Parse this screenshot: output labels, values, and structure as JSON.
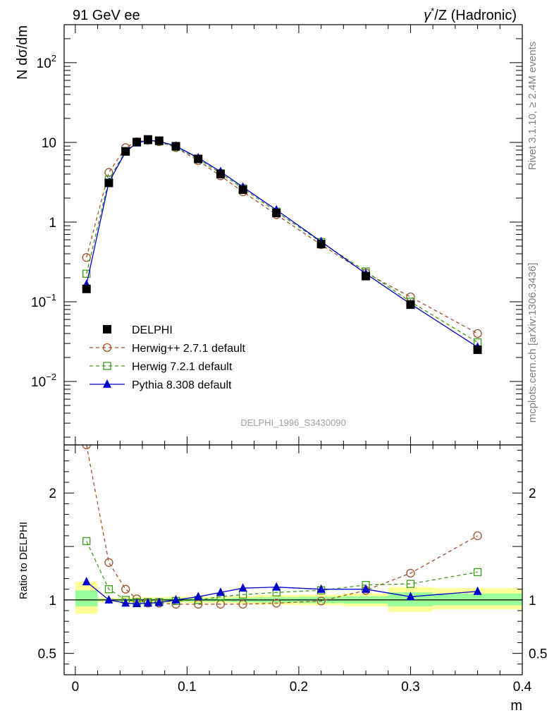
{
  "header": {
    "left": "91 GeV ee",
    "right_sym": "γ",
    "right_sup": "*",
    "right_rest": "/Z (Hadronic)"
  },
  "side_labels": {
    "rivet": "Rivet 3.1.10, ≥ 2.4M events",
    "mcplots": "mcplots.cern.ch [arXiv:1306.3436]"
  },
  "watermark": "DELPHI_1996_S3430090",
  "colors": {
    "data": "#000000",
    "herwigpp": "#a0522d",
    "herwig7": "#3a9a1a",
    "pythia": "#0000cc",
    "band_outer": "#ffff99",
    "band_inner": "#99ff99"
  },
  "chart_data": [
    {
      "type": "line",
      "name": "main",
      "ylabel": "N dσ/dm",
      "yscale": "log",
      "xlim": [
        -0.01,
        0.4
      ],
      "ylim": [
        0.0016,
        300
      ],
      "yticks": [
        {
          "value": 0.01,
          "base": "10",
          "exp": "−2"
        },
        {
          "value": 0.1,
          "base": "10",
          "exp": "−1"
        },
        {
          "value": 1,
          "base": "1",
          "exp": ""
        },
        {
          "value": 10,
          "base": "10",
          "exp": ""
        },
        {
          "value": 100,
          "base": "10",
          "exp": "2"
        }
      ],
      "legend_position": "left, lower",
      "series": [
        {
          "name": "DELPHI",
          "key": "data",
          "marker": "square-filled",
          "x": [
            0.01,
            0.03,
            0.045,
            0.055,
            0.065,
            0.075,
            0.09,
            0.11,
            0.13,
            0.15,
            0.18,
            0.22,
            0.26,
            0.3,
            0.36
          ],
          "y": [
            0.145,
            3.1,
            7.7,
            10.1,
            10.9,
            10.5,
            8.95,
            6.2,
            4.0,
            2.55,
            1.3,
            0.53,
            0.21,
            0.092,
            0.025
          ]
        },
        {
          "name": "Herwig++ 2.7.1 default",
          "key": "herwigpp",
          "marker": "circle-open",
          "dash": "5,4",
          "x": [
            0.01,
            0.03,
            0.045,
            0.055,
            0.065,
            0.075,
            0.09,
            0.11,
            0.13,
            0.15,
            0.18,
            0.22,
            0.26,
            0.3,
            0.36
          ],
          "y": [
            0.36,
            4.2,
            8.6,
            10.2,
            10.6,
            10.2,
            8.6,
            5.9,
            3.8,
            2.4,
            1.24,
            0.52,
            0.23,
            0.115,
            0.04
          ]
        },
        {
          "name": "Herwig 7.2.1 default",
          "key": "herwig7",
          "marker": "square-open",
          "dash": "5,4",
          "x": [
            0.01,
            0.03,
            0.045,
            0.055,
            0.065,
            0.075,
            0.09,
            0.11,
            0.13,
            0.15,
            0.18,
            0.22,
            0.26,
            0.3,
            0.36
          ],
          "y": [
            0.225,
            3.4,
            7.8,
            10.0,
            10.6,
            10.3,
            8.8,
            6.2,
            4.1,
            2.65,
            1.35,
            0.56,
            0.24,
            0.1,
            0.031
          ]
        },
        {
          "name": "Pythia 8.308 default",
          "key": "pythia",
          "marker": "triangle-filled",
          "dash": "",
          "x": [
            0.01,
            0.03,
            0.045,
            0.055,
            0.065,
            0.075,
            0.09,
            0.11,
            0.13,
            0.15,
            0.18,
            0.22,
            0.26,
            0.3,
            0.36
          ],
          "y": [
            0.165,
            3.15,
            7.6,
            9.85,
            10.6,
            10.35,
            9.0,
            6.4,
            4.3,
            2.75,
            1.42,
            0.57,
            0.225,
            0.094,
            0.027
          ]
        }
      ]
    },
    {
      "type": "line",
      "name": "ratio",
      "ylabel": "Ratio to DELPHI",
      "xlabel": "m",
      "xlim": [
        -0.01,
        0.4
      ],
      "ylim": [
        0.3,
        2.45
      ],
      "yticks": [
        0.5,
        1,
        2
      ],
      "xticks": [
        0,
        0.1,
        0.2,
        0.3,
        0.4
      ],
      "xtick_labels": [
        "0",
        "0.1",
        "0.2",
        "0.3",
        "0.4"
      ],
      "ytick_labels": [
        "0.5",
        "1",
        "2"
      ],
      "bands": [
        {
          "x0": 0.0,
          "x1": 0.02,
          "outer": [
            0.87,
            1.17
          ],
          "inner": [
            0.94,
            1.09
          ]
        },
        {
          "x0": 0.02,
          "x1": 0.04,
          "outer": [
            0.98,
            1.02
          ],
          "inner": [
            0.99,
            1.01
          ]
        },
        {
          "x0": 0.04,
          "x1": 0.05,
          "outer": [
            0.975,
            1.025
          ],
          "inner": [
            0.988,
            1.012
          ]
        },
        {
          "x0": 0.05,
          "x1": 0.06,
          "outer": [
            0.975,
            1.025
          ],
          "inner": [
            0.988,
            1.012
          ]
        },
        {
          "x0": 0.06,
          "x1": 0.07,
          "outer": [
            0.975,
            1.025
          ],
          "inner": [
            0.988,
            1.012
          ]
        },
        {
          "x0": 0.07,
          "x1": 0.08,
          "outer": [
            0.975,
            1.025
          ],
          "inner": [
            0.988,
            1.012
          ]
        },
        {
          "x0": 0.08,
          "x1": 0.1,
          "outer": [
            0.97,
            1.03
          ],
          "inner": [
            0.985,
            1.015
          ]
        },
        {
          "x0": 0.1,
          "x1": 0.12,
          "outer": [
            0.97,
            1.03
          ],
          "inner": [
            0.985,
            1.015
          ]
        },
        {
          "x0": 0.12,
          "x1": 0.14,
          "outer": [
            0.97,
            1.03
          ],
          "inner": [
            0.985,
            1.015
          ]
        },
        {
          "x0": 0.14,
          "x1": 0.16,
          "outer": [
            0.965,
            1.035
          ],
          "inner": [
            0.98,
            1.02
          ]
        },
        {
          "x0": 0.16,
          "x1": 0.2,
          "outer": [
            0.955,
            1.045
          ],
          "inner": [
            0.975,
            1.025
          ]
        },
        {
          "x0": 0.2,
          "x1": 0.24,
          "outer": [
            0.95,
            1.05
          ],
          "inner": [
            0.97,
            1.03
          ]
        },
        {
          "x0": 0.24,
          "x1": 0.28,
          "outer": [
            0.94,
            1.06
          ],
          "inner": [
            0.965,
            1.035
          ]
        },
        {
          "x0": 0.28,
          "x1": 0.32,
          "outer": [
            0.89,
            1.12
          ],
          "inner": [
            0.94,
            1.07
          ]
        },
        {
          "x0": 0.32,
          "x1": 0.4,
          "outer": [
            0.91,
            1.11
          ],
          "inner": [
            0.95,
            1.06
          ]
        }
      ],
      "series": [
        {
          "name": "Herwig++ 2.7.1 default",
          "key": "herwigpp",
          "marker": "circle-open",
          "dash": "5,4",
          "x": [
            0.01,
            0.03,
            0.045,
            0.055,
            0.065,
            0.075,
            0.09,
            0.11,
            0.13,
            0.15,
            0.18,
            0.22,
            0.26,
            0.3,
            0.36
          ],
          "y": [
            2.45,
            1.35,
            1.1,
            1.01,
            0.97,
            0.97,
            0.96,
            0.96,
            0.96,
            0.96,
            0.97,
            0.99,
            1.09,
            1.25,
            1.6
          ]
        },
        {
          "name": "Herwig 7.2.1 default",
          "key": "herwig7",
          "marker": "square-open",
          "dash": "5,4",
          "x": [
            0.01,
            0.03,
            0.045,
            0.055,
            0.065,
            0.075,
            0.09,
            0.11,
            0.13,
            0.15,
            0.18,
            0.22,
            0.26,
            0.3,
            0.36
          ],
          "y": [
            1.55,
            1.1,
            1.0,
            0.98,
            0.98,
            0.98,
            0.99,
            1.0,
            1.03,
            1.05,
            1.07,
            1.09,
            1.14,
            1.15,
            1.26
          ]
        },
        {
          "name": "Pythia 8.308 default",
          "key": "pythia",
          "marker": "triangle-filled",
          "dash": "",
          "x": [
            0.01,
            0.03,
            0.045,
            0.055,
            0.065,
            0.075,
            0.09,
            0.11,
            0.13,
            0.15,
            0.18,
            0.22,
            0.26,
            0.3,
            0.36
          ],
          "y": [
            1.17,
            1.0,
            0.97,
            0.965,
            0.97,
            0.975,
            1.0,
            1.03,
            1.07,
            1.11,
            1.12,
            1.1,
            1.1,
            1.03,
            1.08
          ]
        }
      ]
    }
  ]
}
